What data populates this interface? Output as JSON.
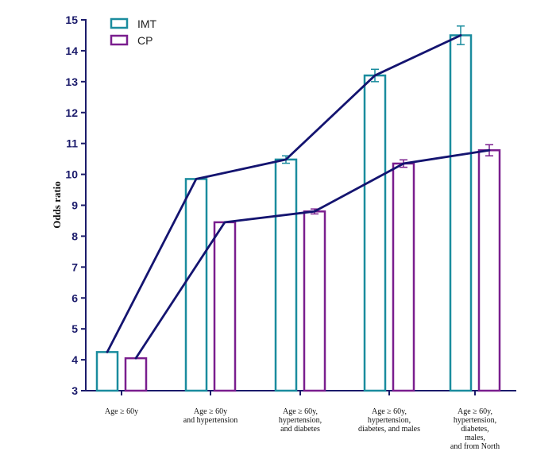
{
  "chart_data": {
    "type": "bar",
    "title": "",
    "xlabel": "",
    "ylabel": "Odds ratio",
    "ylim": [
      3,
      15
    ],
    "yticks": [
      3,
      4,
      5,
      6,
      7,
      8,
      9,
      10,
      11,
      12,
      13,
      14,
      15
    ],
    "legend_position": "top-left",
    "categories": [
      [
        "Age ≥ 60y"
      ],
      [
        "Age ≥ 60y",
        "and hypertension"
      ],
      [
        "Age ≥ 60y,",
        "hypertension,",
        "and diabetes"
      ],
      [
        "Age ≥ 60y,",
        "hypertension,",
        "diabetes, and males"
      ],
      [
        "Age ≥ 60y,",
        "hypertension,",
        "diabetes,",
        "males,",
        "and from North"
      ]
    ],
    "series": [
      {
        "name": "IMT",
        "color": "#1a8c9e",
        "values": [
          4.25,
          9.85,
          10.48,
          13.2,
          14.5
        ],
        "errors": [
          0,
          0,
          0.12,
          0.2,
          0.3
        ]
      },
      {
        "name": "CP",
        "color": "#7a1e8e",
        "values": [
          4.05,
          8.45,
          8.8,
          10.35,
          10.78
        ],
        "errors": [
          0,
          0,
          0.08,
          0.12,
          0.18
        ]
      }
    ],
    "trend_line_color": "#141470",
    "axis_color": "#1b1b6b"
  }
}
